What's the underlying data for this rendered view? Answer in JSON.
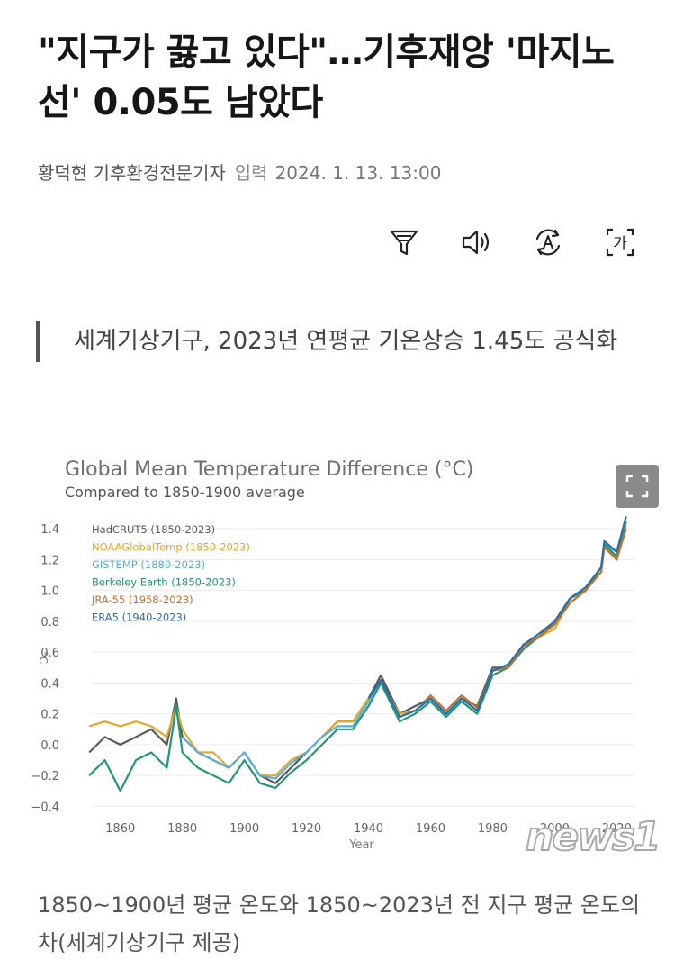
{
  "article": {
    "headline": "\"지구가 끓고 있다\"…기후재앙 '마지노선' 0.05도 남았다",
    "byline": {
      "author": "황덕현 기후환경전문기자",
      "input_label": "입력",
      "date": "2024. 1. 13. 13:00"
    },
    "toolbar": {
      "filter_label": "필터",
      "audio_label": "음성 듣기",
      "translate_label": "번역",
      "fontsize_label": "가"
    },
    "summary": "세계기상기구, 2023년 연평균 기온상승 1.45도 공식화",
    "caption": "1850~1900년 평균 온도와 1850~2023년 전 지구 평균 온도의 차(세계기상기구 제공)",
    "watermark": "news1"
  },
  "chart_data": {
    "type": "line",
    "title": "Global Mean Temperature Difference (°C)",
    "subtitle": "Compared to 1850-1900 average",
    "xlabel": "Year",
    "ylabel": "°C",
    "xlim": [
      1845,
      2026
    ],
    "ylim": [
      -0.45,
      1.5
    ],
    "xticks": [
      1860,
      1880,
      1900,
      1920,
      1940,
      1960,
      1980,
      2000,
      2020
    ],
    "yticks": [
      -0.4,
      -0.2,
      0.0,
      0.2,
      0.4,
      0.6,
      0.8,
      1.0,
      1.2,
      1.4
    ],
    "ytick_labels": [
      "−0.4",
      "−0.2",
      "0.0",
      "0.2",
      "0.4",
      "0.6",
      "0.8",
      "1.0",
      "1.2",
      "1.4"
    ],
    "grid": "horizontal",
    "legend_position": "top-left",
    "series": [
      {
        "name": "HadCRUT5 (1850-2023)",
        "color": "#5a5a5a",
        "x": [
          1850,
          1855,
          1860,
          1865,
          1870,
          1875,
          1878,
          1880,
          1885,
          1890,
          1895,
          1900,
          1905,
          1910,
          1915,
          1920,
          1925,
          1930,
          1935,
          1940,
          1944,
          1950,
          1955,
          1960,
          1965,
          1970,
          1975,
          1980,
          1985,
          1990,
          1995,
          2000,
          2005,
          2010,
          2015,
          2016,
          2020,
          2023
        ],
        "y": [
          -0.05,
          0.05,
          0.0,
          0.05,
          0.1,
          0.0,
          0.3,
          0.05,
          -0.05,
          -0.1,
          -0.15,
          -0.05,
          -0.2,
          -0.25,
          -0.15,
          -0.05,
          0.05,
          0.15,
          0.15,
          0.3,
          0.45,
          0.2,
          0.25,
          0.3,
          0.2,
          0.3,
          0.25,
          0.5,
          0.5,
          0.65,
          0.7,
          0.8,
          0.95,
          1.0,
          1.15,
          1.3,
          1.25,
          1.45
        ]
      },
      {
        "name": "NOAAGlobalTemp (1850-2023)",
        "color": "#e0a92e",
        "x": [
          1850,
          1855,
          1860,
          1865,
          1870,
          1875,
          1878,
          1880,
          1885,
          1890,
          1895,
          1900,
          1905,
          1910,
          1915,
          1920,
          1925,
          1930,
          1935,
          1940,
          1944,
          1950,
          1955,
          1960,
          1965,
          1970,
          1975,
          1980,
          1985,
          1990,
          1995,
          2000,
          2005,
          2010,
          2015,
          2016,
          2020,
          2023
        ],
        "y": [
          0.12,
          0.15,
          0.12,
          0.15,
          0.12,
          0.05,
          0.25,
          0.1,
          -0.05,
          -0.05,
          -0.15,
          -0.05,
          -0.2,
          -0.2,
          -0.1,
          -0.05,
          0.05,
          0.15,
          0.15,
          0.3,
          0.4,
          0.2,
          0.22,
          0.3,
          0.2,
          0.3,
          0.22,
          0.45,
          0.5,
          0.65,
          0.7,
          0.75,
          0.95,
          1.0,
          1.15,
          1.3,
          1.2,
          1.42
        ]
      },
      {
        "name": "GISTEMP (1880-2023)",
        "color": "#5aaed8",
        "x": [
          1880,
          1885,
          1890,
          1895,
          1900,
          1905,
          1910,
          1915,
          1920,
          1925,
          1930,
          1935,
          1940,
          1944,
          1950,
          1955,
          1960,
          1965,
          1970,
          1975,
          1980,
          1985,
          1990,
          1995,
          2000,
          2005,
          2010,
          2015,
          2016,
          2020,
          2023
        ],
        "y": [
          0.05,
          -0.05,
          -0.1,
          -0.15,
          -0.05,
          -0.2,
          -0.22,
          -0.12,
          -0.05,
          0.05,
          0.12,
          0.12,
          0.28,
          0.42,
          0.18,
          0.22,
          0.3,
          0.2,
          0.3,
          0.22,
          0.48,
          0.5,
          0.65,
          0.7,
          0.78,
          0.95,
          1.0,
          1.15,
          1.3,
          1.25,
          1.45
        ]
      },
      {
        "name": "Berkeley Earth (1850-2023)",
        "color": "#23967a",
        "x": [
          1850,
          1855,
          1860,
          1865,
          1870,
          1875,
          1878,
          1880,
          1885,
          1890,
          1895,
          1900,
          1905,
          1910,
          1915,
          1920,
          1925,
          1930,
          1935,
          1940,
          1944,
          1950,
          1955,
          1960,
          1965,
          1970,
          1975,
          1980,
          1985,
          1990,
          1995,
          2000,
          2005,
          2010,
          2015,
          2016,
          2020,
          2023
        ],
        "y": [
          -0.2,
          -0.1,
          -0.3,
          -0.1,
          -0.05,
          -0.15,
          0.25,
          -0.05,
          -0.15,
          -0.2,
          -0.25,
          -0.1,
          -0.25,
          -0.28,
          -0.18,
          -0.1,
          0.0,
          0.1,
          0.1,
          0.25,
          0.4,
          0.15,
          0.2,
          0.28,
          0.18,
          0.28,
          0.2,
          0.45,
          0.5,
          0.62,
          0.7,
          0.78,
          0.95,
          1.0,
          1.15,
          1.3,
          1.22,
          1.45
        ]
      },
      {
        "name": "JRA-55 (1958-2023)",
        "color": "#c8702c",
        "x": [
          1958,
          1960,
          1965,
          1970,
          1975,
          1980,
          1985,
          1990,
          1995,
          2000,
          2005,
          2010,
          2015,
          2016,
          2020,
          2023
        ],
        "y": [
          0.28,
          0.32,
          0.22,
          0.32,
          0.24,
          0.48,
          0.5,
          0.64,
          0.7,
          0.78,
          0.92,
          1.0,
          1.12,
          1.28,
          1.2,
          1.4
        ]
      },
      {
        "name": "ERA5 (1940-2023)",
        "color": "#2c6fa8",
        "x": [
          1940,
          1944,
          1950,
          1955,
          1960,
          1965,
          1970,
          1975,
          1980,
          1985,
          1990,
          1995,
          2000,
          2005,
          2010,
          2015,
          2016,
          2020,
          2023
        ],
        "y": [
          0.3,
          0.42,
          0.18,
          0.22,
          0.3,
          0.2,
          0.3,
          0.22,
          0.48,
          0.52,
          0.65,
          0.72,
          0.8,
          0.95,
          1.02,
          1.15,
          1.32,
          1.25,
          1.48
        ]
      }
    ]
  }
}
